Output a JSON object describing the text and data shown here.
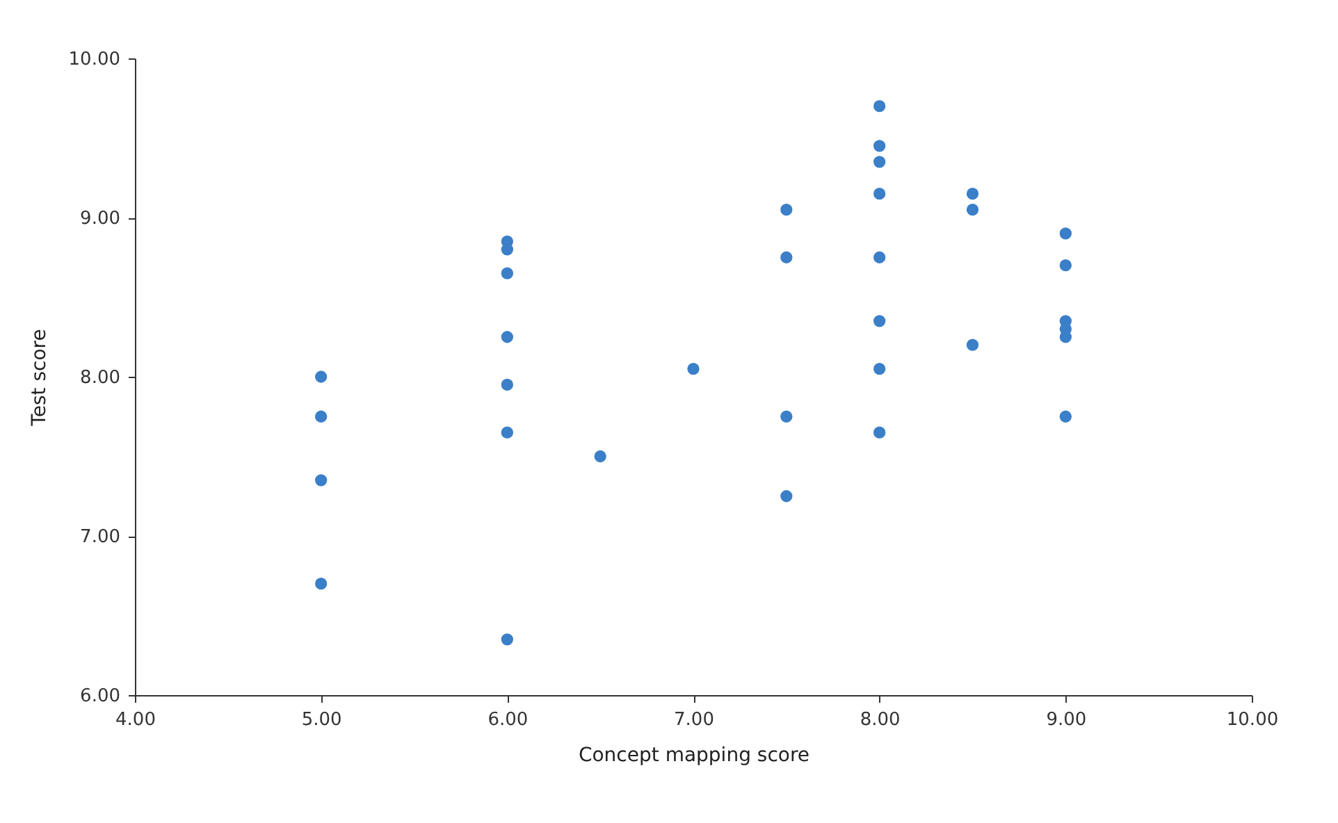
{
  "chart_data": {
    "type": "scatter",
    "xlabel": "Concept mapping score",
    "ylabel": "Test score",
    "marker": "circle",
    "grid": false,
    "x": [
      5,
      5,
      5,
      5,
      6,
      6,
      6,
      6,
      6,
      6,
      6,
      6.5,
      7,
      7.5,
      7.5,
      7.5,
      7.5,
      8,
      8,
      8,
      8,
      8,
      8,
      8,
      8,
      8.5,
      8.5,
      8.5,
      9,
      9,
      9,
      9,
      9,
      9
    ],
    "series": [
      {
        "color": "#3a7fc8",
        "values": [
          8.0,
          7.75,
          7.35,
          6.7,
          8.85,
          8.8,
          8.65,
          8.25,
          7.95,
          7.65,
          6.35,
          7.5,
          8.05,
          9.05,
          8.75,
          7.75,
          7.25,
          9.7,
          9.45,
          9.35,
          9.15,
          8.75,
          8.35,
          8.05,
          7.65,
          9.15,
          9.05,
          8.2,
          8.9,
          8.7,
          8.35,
          8.3,
          8.25,
          7.75
        ]
      }
    ],
    "xlim": [
      4,
      10
    ],
    "ylim": [
      6,
      10
    ],
    "xticks": [
      {
        "value": 4,
        "label": "4.00"
      },
      {
        "value": 5,
        "label": "5.00"
      },
      {
        "value": 6,
        "label": "6.00"
      },
      {
        "value": 7,
        "label": "7.00"
      },
      {
        "value": 8,
        "label": "8.00"
      },
      {
        "value": 9,
        "label": "9.00"
      },
      {
        "value": 10,
        "label": "10.00"
      }
    ],
    "yticks": [
      {
        "value": 6,
        "label": "6.00"
      },
      {
        "value": 7,
        "label": "7.00"
      },
      {
        "value": 8,
        "label": "8.00"
      },
      {
        "value": 9,
        "label": "9.00"
      },
      {
        "value": 10,
        "label": "10.00"
      }
    ]
  }
}
